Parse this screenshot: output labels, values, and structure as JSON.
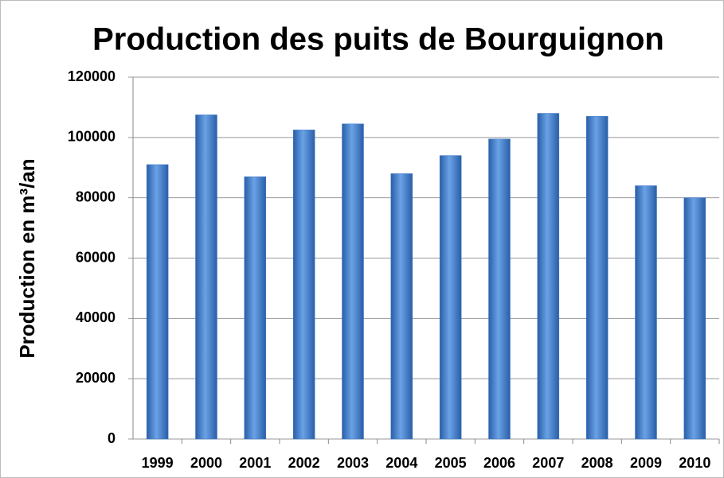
{
  "chart_data": {
    "type": "bar",
    "title": "Production des puits de Bourguignon",
    "y_label": "Production en m³/an",
    "categories": [
      "1999",
      "2000",
      "2001",
      "2002",
      "2003",
      "2004",
      "2005",
      "2006",
      "2007",
      "2008",
      "2009",
      "2010"
    ],
    "values": [
      91000,
      107500,
      87000,
      102500,
      104500,
      88000,
      94000,
      99500,
      108000,
      107000,
      84000,
      80000
    ],
    "color": "#3d78c8",
    "ylim": [
      0,
      120000
    ],
    "yticks": [
      0,
      20000,
      40000,
      60000,
      80000,
      100000,
      120000
    ],
    "grid": true
  }
}
